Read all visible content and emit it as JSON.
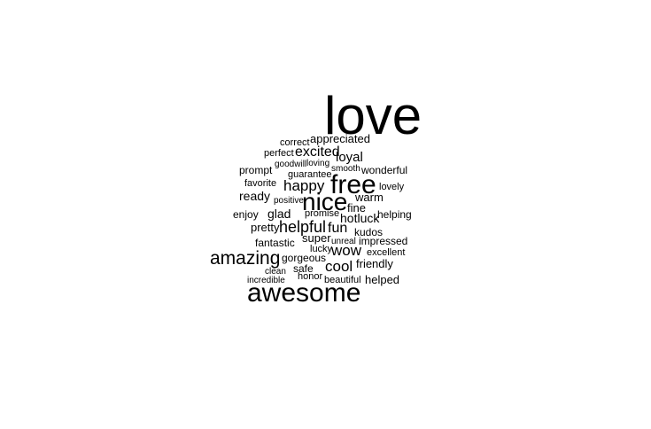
{
  "words": [
    "love",
    "appreciated",
    "correct",
    "perfect",
    "excited",
    "loyal",
    "goodwill",
    "loving",
    "prompt",
    "guarantee",
    "smooth",
    "wonderful",
    "favorite",
    "happy",
    "free",
    "lovely",
    "ready",
    "positive",
    "nice",
    "warm",
    "enjoy",
    "glad",
    "promise",
    "fine",
    "hotluck",
    "helping",
    "pretty",
    "helpful",
    "fun",
    "kudos",
    "fantastic",
    "super",
    "unreal",
    "impressed",
    "lucky",
    "wow",
    "excellent",
    "amazing",
    "gorgeous",
    "cool",
    "friendly",
    "safe",
    "clean",
    "honor",
    "incredible",
    "beautiful",
    "helped",
    "awesome"
  ]
}
